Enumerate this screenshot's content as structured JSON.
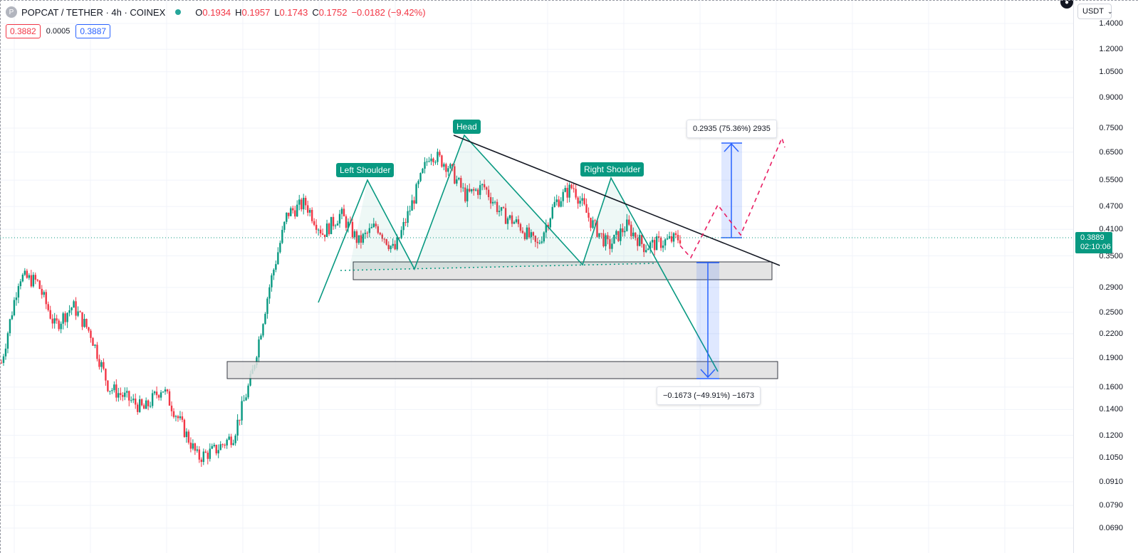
{
  "header": {
    "logo_letter": "P",
    "symbol": "POPCAT / TETHER · 4h · COINEX",
    "ohlc": [
      {
        "k": "O",
        "v": "0.1934"
      },
      {
        "k": "H",
        "v": "0.1957"
      },
      {
        "k": "L",
        "v": "0.1743"
      },
      {
        "k": "C",
        "v": "0.1752"
      },
      {
        "k": "",
        "v": "−0.0182 (−9.42%)"
      }
    ],
    "bid": "0.3882",
    "spread": "0.0005",
    "ask": "0.3887"
  },
  "price_axis": {
    "currency": "USDT",
    "ticks": [
      "1.4000",
      "1.2000",
      "1.0500",
      "0.9000",
      "0.7500",
      "0.6500",
      "0.5500",
      "0.4700",
      "0.4100",
      "0.3500",
      "0.2900",
      "0.2500",
      "0.2200",
      "0.1900",
      "0.1600",
      "0.1400",
      "0.1200",
      "0.1050",
      "0.0910",
      "0.0790",
      "0.0690"
    ],
    "current_price": "0.3889",
    "countdown": "02:10:06"
  },
  "annotations": {
    "left_shoulder": "Left Shoulder",
    "head": "Head",
    "right_shoulder": "Right Shoulder",
    "target_up": "0.2935 (75.36%) 2935",
    "target_down": "−0.1673 (−49.91%) −1673"
  },
  "colors": {
    "up": "#089981",
    "down": "#f23645",
    "pattern": "#089981",
    "measure": "#2962ff",
    "projection": "#e91e63"
  },
  "chart_data": {
    "type": "candlestick",
    "scale": "log",
    "price_range": [
      0.069,
      1.4
    ],
    "guide_path": [
      0.185,
      0.31,
      0.3,
      0.23,
      0.26,
      0.22,
      0.16,
      0.15,
      0.14,
      0.16,
      0.13,
      0.105,
      0.11,
      0.12,
      0.17,
      0.29,
      0.45,
      0.48,
      0.4,
      0.45,
      0.38,
      0.42,
      0.36,
      0.48,
      0.65,
      0.6,
      0.5,
      0.53,
      0.45,
      0.42,
      0.37,
      0.48,
      0.53,
      0.43,
      0.37,
      0.42,
      0.37,
      0.38,
      0.39
    ]
  }
}
